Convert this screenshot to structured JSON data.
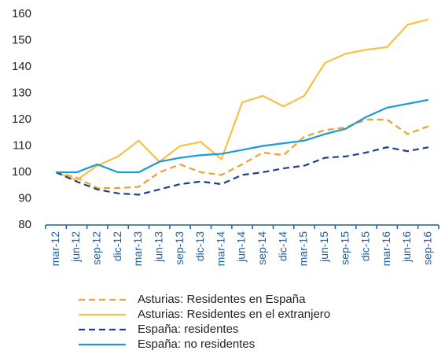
{
  "chart_data": {
    "type": "line",
    "categories": [
      "mar-12",
      "jun-12",
      "sep-12",
      "dic-12",
      "mar-13",
      "jun-13",
      "sep-13",
      "dic-13",
      "mar-14",
      "jun-14",
      "sep-14",
      "dic-14",
      "mar-15",
      "jun-15",
      "sep-15",
      "dic-15",
      "mar-16",
      "jun-16",
      "sep-16"
    ],
    "series": [
      {
        "name": "Asturias: Residentes en España",
        "color": "#f0a030",
        "style": "dashed",
        "values": [
          100,
          98,
          94,
          94,
          94.5,
          100,
          103,
          100,
          99,
          103,
          107.5,
          106.5,
          113.5,
          116,
          117,
          120,
          120,
          114.5,
          117.5
        ]
      },
      {
        "name": "Asturias: Residentes en el extranjero",
        "color": "#f5c242",
        "style": "solid",
        "values": [
          100,
          97,
          102.5,
          106,
          112,
          104,
          110,
          111.5,
          105,
          126.5,
          129,
          125,
          129,
          141.5,
          145,
          146.5,
          147.5,
          156,
          158
        ]
      },
      {
        "name": "España: residentes",
        "color": "#1f3f8f",
        "style": "dashed",
        "values": [
          100,
          96.5,
          93.5,
          92,
          91.5,
          93.5,
          95.5,
          96.5,
          95.5,
          99,
          100,
          101.5,
          102.5,
          105.5,
          106,
          107.5,
          109.5,
          108,
          109.5
        ]
      },
      {
        "name": "España: no residentes",
        "color": "#1a9ad6",
        "style": "solid",
        "values": [
          100,
          100,
          103,
          100,
          100,
          104,
          105.5,
          106.5,
          107,
          108.5,
          110,
          111,
          112,
          114.5,
          116.5,
          121,
          124.5,
          126,
          127.5
        ]
      }
    ],
    "ylim": [
      80,
      160
    ],
    "yticks": [
      80,
      90,
      100,
      110,
      120,
      130,
      140,
      150,
      160
    ],
    "grid": false,
    "legend": "bottom"
  }
}
